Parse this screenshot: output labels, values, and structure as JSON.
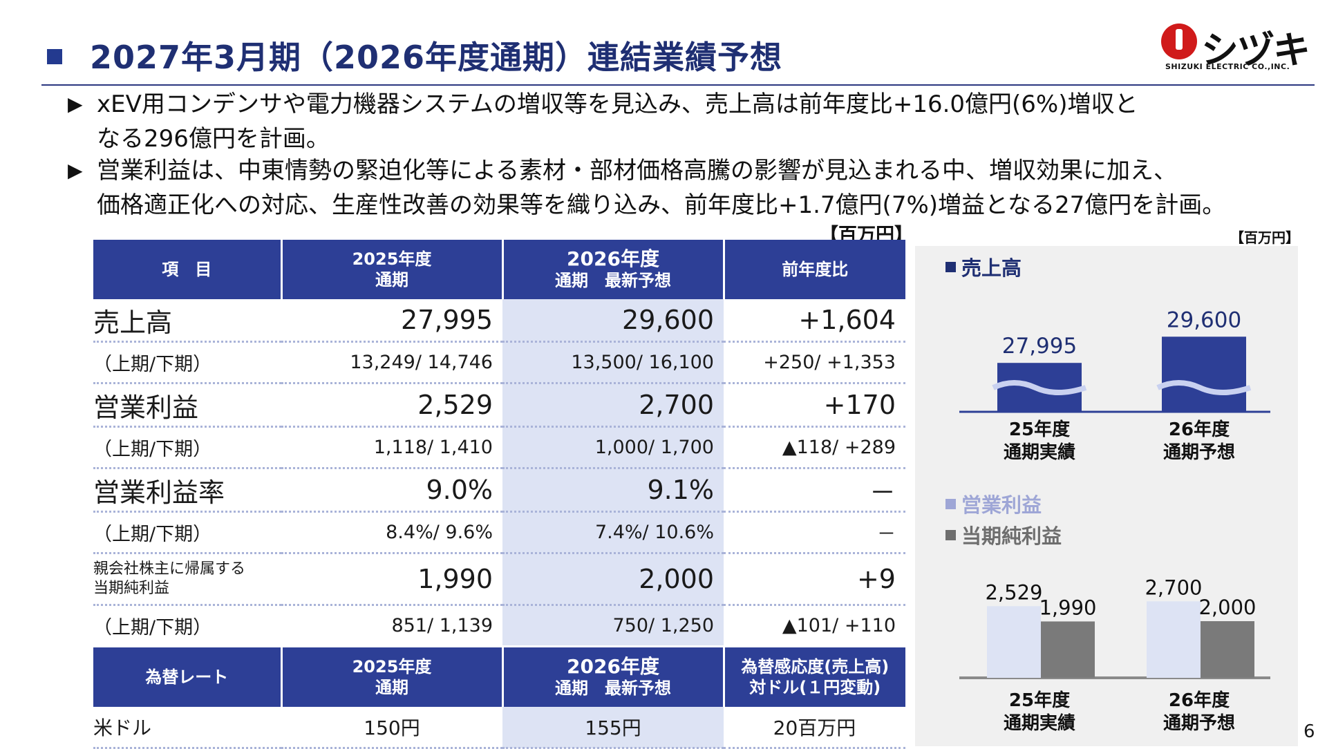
{
  "title": "2027年3月期（2026年度通期）連結業績予想",
  "logo": {
    "kana": "シヅキ",
    "english": "SHIZUKI ELECTRIC CO.,INC."
  },
  "bullets": [
    "xEV用コンデンサや電力機器システムの増収等を見込み、売上高は前年度比+16.0億円(6%)増収と\nなる296億円を計画。",
    "営業利益は、中東情勢の緊迫化等による素材・部材価格高騰の影響が見込まれる中、増収効果に加え、\n価格適正化への対応、生産性改善の効果等を織り込み、前年度比+1.7億円(7%)増益となる27億円を計画。"
  ],
  "bullet_marker": "▶",
  "unit_label": "【百万円】",
  "table": {
    "headers": {
      "item": "項　目",
      "fy2025_line1": "2025年度",
      "fy2025_line2": "通期",
      "fy2026_line1": "2026年度",
      "fy2026_line2": "通期　最新予想",
      "yoy": "前年度比"
    },
    "rows": [
      {
        "label": "売上高",
        "fy2025": "27,995",
        "fy2026": "29,600",
        "yoy": "+1,604"
      },
      {
        "label": "（上期/下期）",
        "fy2025": "13,249/ 14,746",
        "fy2026": "13,500/ 16,100",
        "yoy": "+250/ +1,353"
      },
      {
        "label": "営業利益",
        "fy2025": "2,529",
        "fy2026": "2,700",
        "yoy": "+170"
      },
      {
        "label": "（上期/下期）",
        "fy2025": "1,118/ 1,410",
        "fy2026": "1,000/ 1,700",
        "yoy": "▲118/ +289"
      },
      {
        "label": "営業利益率",
        "fy2025": "9.0%",
        "fy2026": "9.1%",
        "yoy": "－"
      },
      {
        "label": "（上期/下期）",
        "fy2025": "8.4%/ 9.6%",
        "fy2026": "7.4%/ 10.6%",
        "yoy": "－"
      },
      {
        "label_line1": "親会社株主に帰属する",
        "label_line2": "当期純利益",
        "fy2025": "1,990",
        "fy2026": "2,000",
        "yoy": "+9"
      },
      {
        "label": "（上期/下期）",
        "fy2025": "851/ 1,139",
        "fy2026": "750/ 1,250",
        "yoy": "▲101/ +110"
      }
    ],
    "fx_headers": {
      "item": "為替レート",
      "fy2025_line1": "2025年度",
      "fy2025_line2": "通期",
      "fy2026_line1": "2026年度",
      "fy2026_line2": "通期　最新予想",
      "sens_line1": "為替感応度(売上高)",
      "sens_line2": "対ドル(１円変動)"
    },
    "fx_row": {
      "label": "米ドル",
      "fy2025": "150円",
      "fy2026": "155円",
      "sensitivity": "20百万円"
    }
  },
  "chart_panel": {
    "unit_label": "【百万円】",
    "legend_sales": "売上高",
    "legend_op": "営業利益",
    "legend_net": "当期純利益",
    "categories": [
      "25年度\n通期実績",
      "26年度\n通期予想"
    ],
    "colors": {
      "sales": "#2d3f96",
      "operating_profit": "#dde3f4",
      "net_income": "#7a7a7a"
    }
  },
  "chart_data": [
    {
      "type": "bar",
      "categories": [
        "25年度 通期実績",
        "26年度 通期予想"
      ],
      "series": [
        {
          "name": "売上高",
          "values": [
            27995,
            29600
          ]
        }
      ],
      "data_labels": [
        "27,995",
        "29,600"
      ],
      "axis_break": true
    },
    {
      "type": "bar",
      "categories": [
        "25年度 通期実績",
        "26年度 通期予想"
      ],
      "series": [
        {
          "name": "営業利益",
          "values": [
            2529,
            2700
          ]
        },
        {
          "name": "当期純利益",
          "values": [
            1990,
            2000
          ]
        }
      ],
      "data_labels": [
        [
          "2,529",
          "2,700"
        ],
        [
          "1,990",
          "2,000"
        ]
      ]
    }
  ],
  "page_number": "6"
}
